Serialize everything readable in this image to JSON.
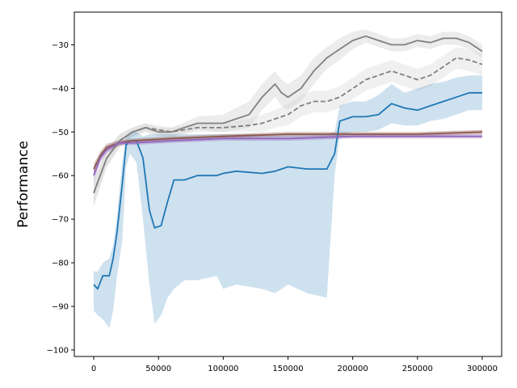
{
  "chart_data": {
    "type": "line",
    "title": "",
    "xlabel": "",
    "ylabel": "Performance",
    "xlim": [
      -15000,
      315000
    ],
    "ylim": [
      -101.5,
      -22.5
    ],
    "grid": false,
    "legend": "none",
    "x_ticks": [
      0,
      50000,
      100000,
      150000,
      200000,
      250000,
      300000
    ],
    "x_tick_labels": [
      "0",
      "50000",
      "100000",
      "150000",
      "200000",
      "250000",
      "300000"
    ],
    "y_ticks": [
      -100,
      -90,
      -80,
      -70,
      -60,
      -50,
      -40,
      -30
    ],
    "y_tick_labels": [
      "−100",
      "−90",
      "−80",
      "−70",
      "−60",
      "−50",
      "−40",
      "−30"
    ],
    "series": [
      {
        "color": "#808080",
        "style": "solid",
        "band_color": "#c8c8c8",
        "x": [
          0,
          10000,
          20000,
          30000,
          40000,
          50000,
          60000,
          80000,
          100000,
          120000,
          130000,
          140000,
          145000,
          150000,
          160000,
          170000,
          180000,
          190000,
          200000,
          210000,
          220000,
          230000,
          240000,
          250000,
          260000,
          270000,
          280000,
          290000,
          300000
        ],
        "y": [
          -64,
          -56,
          -52,
          -50,
          -49,
          -50,
          -50,
          -48,
          -48,
          -46,
          -42,
          -39,
          -41,
          -42,
          -40,
          -36,
          -33,
          -31,
          -29,
          -28,
          -29,
          -30,
          -30,
          -29,
          -29.5,
          -28.5,
          -28.5,
          -29.5,
          -31.5
        ],
        "band": [
          3,
          2,
          1.5,
          1,
          1,
          1,
          1,
          1.5,
          2,
          3,
          3,
          3,
          3,
          3,
          3,
          3,
          2.5,
          2.5,
          2,
          1.5,
          1.5,
          1.5,
          1.5,
          1.5,
          1.5,
          1.5,
          1.5,
          1.5,
          1.5
        ]
      },
      {
        "color": "#808080",
        "style": "dashed",
        "band_color": "#d3d3d3",
        "x": [
          0,
          10000,
          20000,
          30000,
          40000,
          50000,
          60000,
          80000,
          100000,
          120000,
          130000,
          140000,
          150000,
          160000,
          170000,
          180000,
          190000,
          200000,
          210000,
          220000,
          230000,
          240000,
          250000,
          260000,
          270000,
          280000,
          290000,
          300000
        ],
        "y": [
          -64,
          -56,
          -52,
          -50,
          -49,
          -49.5,
          -50,
          -49,
          -49,
          -48.5,
          -48,
          -47,
          -46,
          -44,
          -43,
          -43,
          -42,
          -40,
          -38,
          -37,
          -36,
          -37,
          -38,
          -37,
          -35,
          -33,
          -33.5,
          -34.5
        ],
        "band": [
          3,
          2,
          1.5,
          1,
          1,
          1,
          1,
          1,
          1,
          1.5,
          2,
          2,
          2.5,
          2.5,
          2.5,
          2.5,
          2.5,
          2.5,
          2.5,
          2.5,
          2.5,
          2.5,
          2.5,
          2.5,
          2.5,
          2.5,
          2.5,
          2.5
        ]
      },
      {
        "color": "#1f77b4",
        "style": "solid",
        "band_color": "#1f77b4",
        "x": [
          0,
          3000,
          7000,
          12000,
          15000,
          18000,
          22000,
          25000,
          28000,
          33000,
          38000,
          43000,
          47000,
          52000,
          57000,
          62000,
          70000,
          80000,
          95000,
          100000,
          110000,
          130000,
          140000,
          150000,
          165000,
          180000,
          186000,
          190000,
          200000,
          210000,
          220000,
          230000,
          240000,
          250000,
          260000,
          270000,
          280000,
          290000,
          300000
        ],
        "y": [
          -85,
          -86,
          -83,
          -83,
          -79,
          -73,
          -62,
          -53,
          -52,
          -52,
          -56,
          -68,
          -72,
          -71.5,
          -66,
          -61,
          -61,
          -60,
          -60,
          -59.5,
          -59,
          -59.5,
          -59,
          -58,
          -58.5,
          -58.5,
          -55,
          -47.5,
          -46.5,
          -46.5,
          -46,
          -43.5,
          -44.5,
          -45,
          -44,
          -43,
          -42,
          -41,
          -41
        ],
        "band_upper": [
          -82,
          -82,
          -80,
          -79,
          -76,
          -69,
          -57,
          -51,
          -50,
          -50,
          -51,
          -50.5,
          -50.5,
          -50.5,
          -50.5,
          -50.5,
          -50.5,
          -50.5,
          -50.5,
          -50.5,
          -50.5,
          -50.5,
          -50.5,
          -50.5,
          -50.5,
          -50.5,
          -50,
          -44,
          -43,
          -43,
          -41.5,
          -39,
          -41,
          -40,
          -39,
          -38.5,
          -37.5,
          -37,
          -37
        ],
        "band_lower": [
          -91,
          -92,
          -93,
          -95,
          -91,
          -83,
          -75,
          -58,
          -55,
          -57,
          -70,
          -85,
          -94,
          -92,
          -88,
          -86,
          -84,
          -84,
          -83,
          -86,
          -85,
          -86,
          -87,
          -85,
          -87,
          -88,
          -60,
          -51,
          -50,
          -50,
          -49.5,
          -48,
          -48.5,
          -48.5,
          -47.5,
          -47,
          -46,
          -45,
          -45
        ]
      },
      {
        "color": "#8c564b",
        "style": "solid",
        "band_color": "#8c564b",
        "x": [
          0,
          5000,
          10000,
          20000,
          30000,
          60000,
          100000,
          150000,
          200000,
          250000,
          300000
        ],
        "y": [
          -58.5,
          -55.5,
          -53.5,
          -52.5,
          -52,
          -51.5,
          -51,
          -50.5,
          -50.5,
          -50.5,
          -50
        ],
        "band": [
          1.2,
          1,
          0.8,
          0.6,
          0.5,
          0.5,
          0.5,
          0.5,
          0.5,
          0.5,
          0.5
        ]
      },
      {
        "color": "#9467bd",
        "style": "solid",
        "band_color": "#9467bd",
        "x": [
          0,
          5000,
          10000,
          20000,
          30000,
          60000,
          100000,
          150000,
          200000,
          250000,
          300000
        ],
        "y": [
          -60,
          -56,
          -54,
          -52.5,
          -52.5,
          -52,
          -51.5,
          -51.5,
          -51,
          -51,
          -51
        ],
        "band": [
          1.2,
          1,
          0.8,
          0.6,
          0.5,
          0.5,
          0.5,
          0.5,
          0.5,
          0.5,
          0.5
        ]
      }
    ]
  }
}
